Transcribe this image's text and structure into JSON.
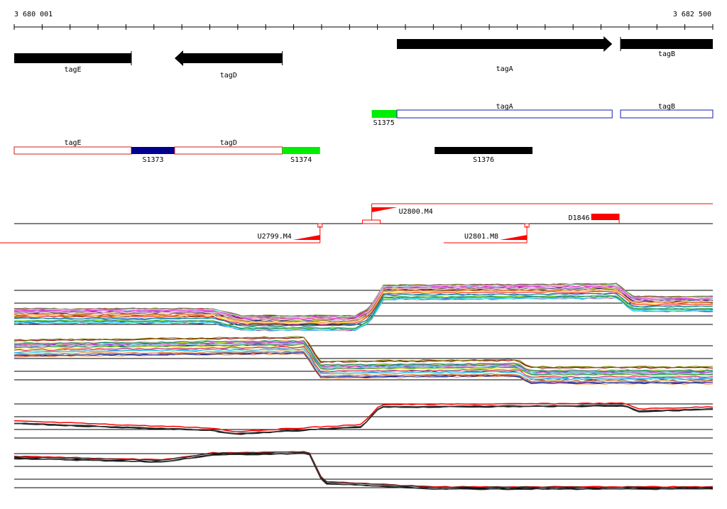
{
  "ruler": {
    "start_label": "3 680 001",
    "end_label": "3 682 500",
    "start": 3680001,
    "end": 3682500,
    "tick_step": 100
  },
  "genes": [
    {
      "name": "tagE",
      "start": 3680001,
      "end": 3680420,
      "strand": "-",
      "arrow": false,
      "label": "tagE"
    },
    {
      "name": "tagD",
      "start": 3680575,
      "end": 3680960,
      "strand": "-",
      "arrow": true,
      "label": "tagD"
    },
    {
      "name": "tagA",
      "start": 3681370,
      "end": 3682140,
      "strand": "+",
      "arrow": true,
      "label": "tagA"
    },
    {
      "name": "tagB",
      "start": 3682170,
      "end": 3682500,
      "strand": "+",
      "arrow": false,
      "label": "tagB"
    }
  ],
  "segments_plus": [
    {
      "label": "S1375",
      "start": 3681280,
      "end": 3681370,
      "color": "#00ee00"
    },
    {
      "label": "tagA",
      "start": 3681370,
      "end": 3682140,
      "color": "#1a1ab0",
      "outline": true
    },
    {
      "label": "tagB",
      "start": 3682170,
      "end": 3682500,
      "color": "#1a1ab0",
      "outline": true
    }
  ],
  "segments_minus": [
    {
      "label": "tagE",
      "start": 3680001,
      "end": 3680420,
      "color": "#cc2222",
      "outline": true
    },
    {
      "label": "S1373",
      "start": 3680420,
      "end": 3680575,
      "color": "#000090"
    },
    {
      "label": "tagD",
      "start": 3680575,
      "end": 3680960,
      "color": "#cc2222",
      "outline": true
    },
    {
      "label": "S1374",
      "start": 3680960,
      "end": 3681095,
      "color": "#00ee00"
    },
    {
      "label": "S1376",
      "start": 3681505,
      "end": 3681855,
      "color": "#000000"
    }
  ],
  "promoters": [
    {
      "label": "U2800.M4",
      "pos": 3681280,
      "strand": "+"
    },
    {
      "label": "U2799.M4",
      "pos": 3681095,
      "strand": "-"
    },
    {
      "label": "U2801.M8",
      "pos": 3681835,
      "strand": "-"
    }
  ],
  "terminator": {
    "label": "D1846",
    "start": 3682065,
    "end": 3682165
  },
  "colors": {
    "gene": "#000000",
    "red": "#ff0000",
    "axis": "#000000"
  }
}
